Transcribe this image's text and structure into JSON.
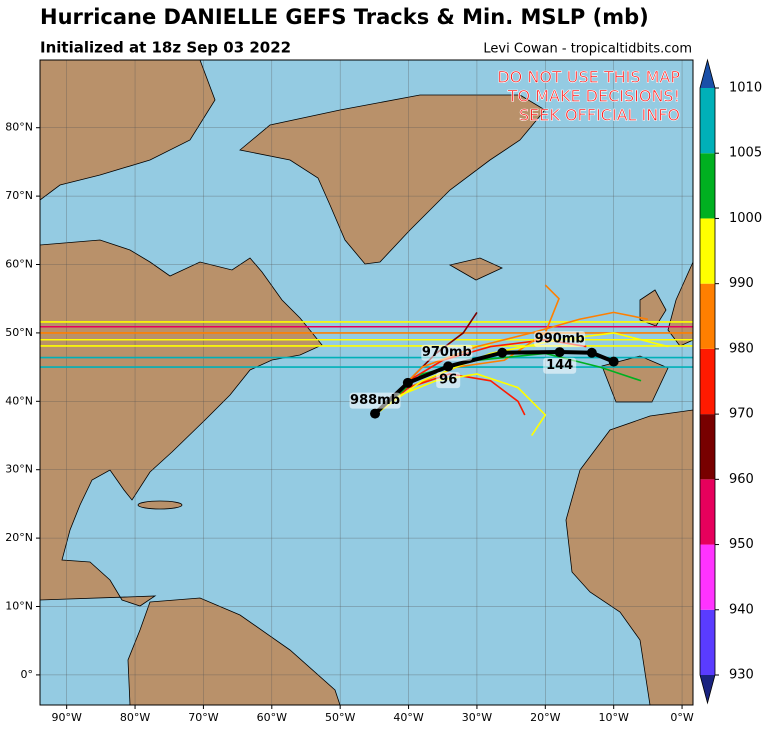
{
  "header": {
    "title": "Hurricane DANIELLE GEFS Tracks & Min. MSLP (mb)",
    "subtitle": "Initialized at 18z Sep 03 2022",
    "credit": "Levi Cowan - tropicaltidbits.com"
  },
  "warning": [
    "DO NOT USE THIS MAP",
    "TO MAKE DECISIONS!",
    "SEEK OFFICIAL INFO"
  ],
  "map": {
    "xlim": [
      -93.9,
      1.6
    ],
    "ylim": [
      -4.4,
      89.9
    ],
    "xticks": [
      {
        "value": -90,
        "label": "90°W"
      },
      {
        "value": -80,
        "label": "80°W"
      },
      {
        "value": -70,
        "label": "70°W"
      },
      {
        "value": -60,
        "label": "60°W"
      },
      {
        "value": -50,
        "label": "50°W"
      },
      {
        "value": -40,
        "label": "40°W"
      },
      {
        "value": -30,
        "label": "30°W"
      },
      {
        "value": -20,
        "label": "20°W"
      },
      {
        "value": -10,
        "label": "10°W"
      },
      {
        "value": 0,
        "label": "0°W"
      }
    ],
    "yticks": [
      {
        "value": 0,
        "label": "0°"
      },
      {
        "value": 10,
        "label": "10°N"
      },
      {
        "value": 20,
        "label": "20°N"
      },
      {
        "value": 30,
        "label": "30°N"
      },
      {
        "value": 40,
        "label": "40°N"
      },
      {
        "value": 50,
        "label": "50°N"
      },
      {
        "value": 60,
        "label": "60°N"
      },
      {
        "value": 70,
        "label": "70°N"
      },
      {
        "value": 80,
        "label": "80°N"
      }
    ]
  },
  "colorbar": {
    "ticks": [
      930,
      940,
      950,
      960,
      970,
      980,
      990,
      1000,
      1005,
      1010
    ],
    "colors": [
      "#5a3cff",
      "#ff33ff",
      "#e6005c",
      "#780000",
      "#ff1a00",
      "#ff7f00",
      "#ffff00",
      "#00b020",
      "#00b0b8"
    ],
    "under_color": "#1a2380",
    "over_color": "#1a50a8"
  },
  "ensemble_tracks": [
    {
      "color": "#ffff00",
      "lon": [
        -93.9,
        1.6
      ],
      "lat": [
        51.6,
        51.6
      ]
    },
    {
      "color": "#e6005c",
      "lon": [
        -93.9,
        1.6
      ],
      "lat": [
        50.9,
        50.9
      ]
    },
    {
      "color": "#ff7f00",
      "lon": [
        -93.9,
        1.6
      ],
      "lat": [
        50.0,
        50.0
      ]
    },
    {
      "color": "#ffff00",
      "lon": [
        -93.9,
        1.6
      ],
      "lat": [
        49.0,
        49.0
      ]
    },
    {
      "color": "#ffff00",
      "lon": [
        -93.9,
        1.6
      ],
      "lat": [
        48.1,
        48.1
      ]
    },
    {
      "color": "#00b0b8",
      "lon": [
        -93.9,
        1.6
      ],
      "lat": [
        46.4,
        46.4
      ]
    },
    {
      "color": "#00b0b8",
      "lon": [
        -93.9,
        1.6
      ],
      "lat": [
        45.0,
        45.0
      ]
    },
    {
      "color": "#ff1a00",
      "lon": [
        -45,
        -40,
        -35,
        -28,
        -20,
        -14
      ],
      "lat": [
        38,
        43,
        46,
        48,
        49,
        48
      ]
    },
    {
      "color": "#780000",
      "lon": [
        -45,
        -40,
        -36,
        -32,
        -30
      ],
      "lat": [
        38,
        43,
        47,
        50,
        53
      ]
    },
    {
      "color": "#ff7f00",
      "lon": [
        -45,
        -40,
        -33,
        -26,
        -20,
        -18,
        -20
      ],
      "lat": [
        38,
        42,
        45,
        46,
        50,
        55,
        57
      ]
    },
    {
      "color": "#ff1a00",
      "lon": [
        -45,
        -40,
        -34,
        -28,
        -24,
        -23
      ],
      "lat": [
        38,
        42,
        44,
        43,
        40,
        38
      ]
    },
    {
      "color": "#ffff00",
      "lon": [
        -45,
        -41,
        -36,
        -30,
        -24,
        -20,
        -22
      ],
      "lat": [
        38,
        41,
        43,
        44,
        42,
        38,
        35
      ]
    },
    {
      "color": "#00b020",
      "lon": [
        -45,
        -38,
        -30,
        -20,
        -12,
        -6
      ],
      "lat": [
        38,
        44,
        46,
        47,
        45,
        43
      ]
    },
    {
      "color": "#ff7f00",
      "lon": [
        -45,
        -38,
        -30,
        -22,
        -15,
        -10,
        -5
      ],
      "lat": [
        38,
        45,
        48,
        50,
        52,
        53,
        52
      ]
    },
    {
      "color": "#ffff00",
      "lon": [
        -45,
        -38,
        -28,
        -18,
        -10,
        -2
      ],
      "lat": [
        38,
        43,
        47,
        49,
        50,
        48
      ]
    }
  ],
  "mean_track": {
    "lon": [
      -44.9,
      -40.1,
      -34.2,
      -26.3,
      -17.9,
      -13.2,
      -10.0
    ],
    "lat": [
      38.2,
      42.7,
      45.1,
      47.1,
      47.2,
      47.1,
      45.8
    ]
  },
  "track_labels": [
    {
      "text": "988mb",
      "lon": -44.9,
      "lat": 40.1
    },
    {
      "text": "970mb",
      "lon": -34.4,
      "lat": 47.1
    },
    {
      "text": "990mb",
      "lon": -17.9,
      "lat": 49.1
    },
    {
      "text": "96",
      "lon": -34.2,
      "lat": 43.1
    },
    {
      "text": "144",
      "lon": -17.9,
      "lat": 45.2
    }
  ]
}
